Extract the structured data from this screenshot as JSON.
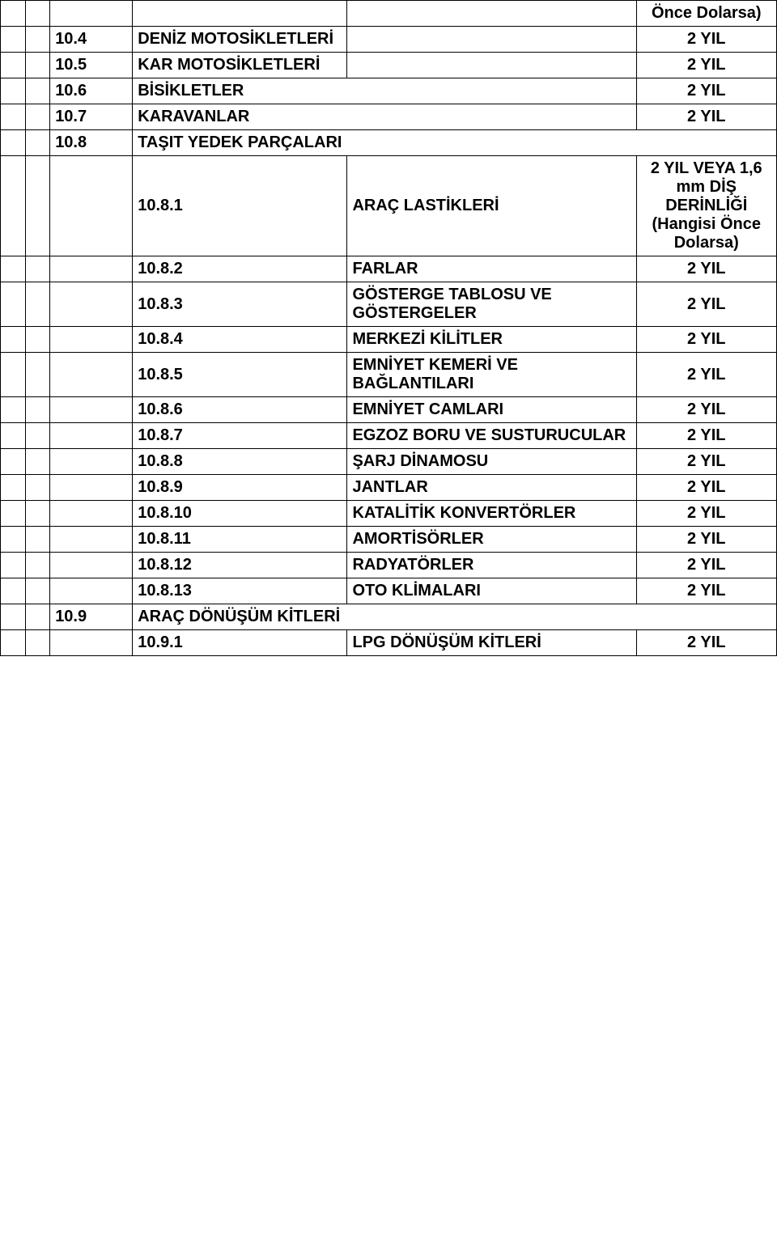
{
  "header_extra": "Önce Dolarsa)",
  "rows": [
    {
      "c2": "10.4",
      "c3": "DENİZ MOTOSİKLETLERİ",
      "c4": "",
      "c5": "2 YIL"
    },
    {
      "c2": "10.5",
      "c3": "KAR MOTOSİKLETLERİ",
      "c4": "",
      "c5": "2 YIL"
    },
    {
      "c2": "10.6",
      "c3": "BİSİKLETLER",
      "c4": "",
      "c5": "2 YIL",
      "span34": true
    },
    {
      "c2": "10.7",
      "c3": "KARAVANLAR",
      "c4": "",
      "c5": "2 YIL",
      "span34": true
    },
    {
      "c2": "10.8",
      "c3": "TAŞIT YEDEK PARÇALARI",
      "c4": "",
      "c5": "",
      "span345": true
    },
    {
      "c2": "",
      "c3": "10.8.1",
      "c4": "ARAÇ LASTİKLERİ",
      "c5": "2 YIL VEYA 1,6 mm DİŞ DERİNLİĞİ (Hangisi Önce Dolarsa)"
    },
    {
      "c2": "",
      "c3": "10.8.2",
      "c4": "FARLAR",
      "c5": "2 YIL"
    },
    {
      "c2": "",
      "c3": "10.8.3",
      "c4": "GÖSTERGE TABLOSU VE GÖSTERGELER",
      "c5": "2 YIL"
    },
    {
      "c2": "",
      "c3": "10.8.4",
      "c4": "MERKEZİ KİLİTLER",
      "c5": "2 YIL"
    },
    {
      "c2": "",
      "c3": "10.8.5",
      "c4": "EMNİYET KEMERİ VE BAĞLANTILARI",
      "c5": "2 YIL"
    },
    {
      "c2": "",
      "c3": "10.8.6",
      "c4": "EMNİYET CAMLARI",
      "c5": "2 YIL"
    },
    {
      "c2": "",
      "c3": "10.8.7",
      "c4": "EGZOZ BORU VE SUSTURUCULAR",
      "c5": "2 YIL"
    },
    {
      "c2": "",
      "c3": "10.8.8",
      "c4": "ŞARJ DİNAMOSU",
      "c5": "2 YIL"
    },
    {
      "c2": "",
      "c3": "10.8.9",
      "c4": "JANTLAR",
      "c5": "2 YIL"
    },
    {
      "c2": "",
      "c3": "10.8.10",
      "c4": "KATALİTİK KONVERTÖRLER",
      "c5": "2 YIL"
    },
    {
      "c2": "",
      "c3": "10.8.11",
      "c4": "AMORTİSÖRLER",
      "c5": "2 YIL"
    },
    {
      "c2": "",
      "c3": "10.8.12",
      "c4": "RADYATÖRLER",
      "c5": "2 YIL"
    },
    {
      "c2": "",
      "c3": "10.8.13",
      "c4": "OTO KLİMALARI",
      "c5": "2 YIL"
    },
    {
      "c2": "10.9",
      "c3": "ARAÇ DÖNÜŞÜM KİTLERİ",
      "c4": "",
      "c5": "",
      "span345": true
    },
    {
      "c2": "",
      "c3": "10.9.1",
      "c4": "LPG DÖNÜŞÜM KİTLERİ",
      "c5": "2 YIL"
    }
  ]
}
